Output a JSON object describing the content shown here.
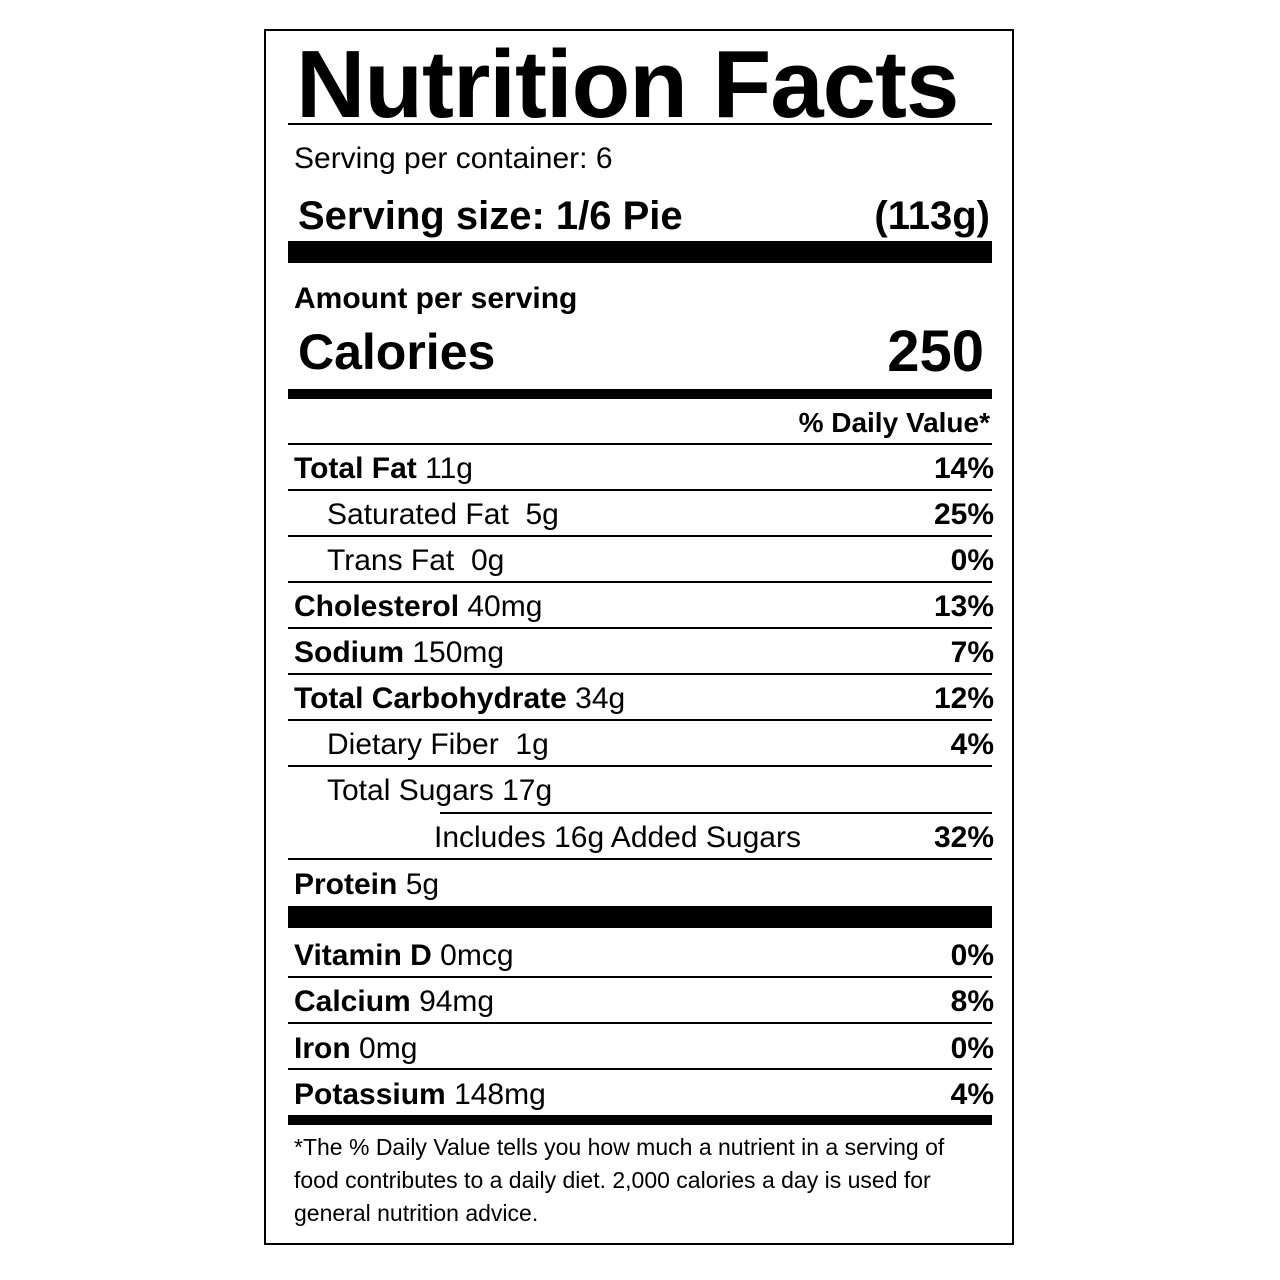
{
  "title": "Nutrition Facts",
  "servings_per_container": "Serving per container: 6",
  "serving_size_label": "Serving size: 1/6 Pie",
  "serving_size_weight": "(113g)",
  "amount_per_serving": "Amount per serving",
  "calories_label": "Calories",
  "calories_value": "250",
  "daily_value_header": "% Daily Value*",
  "nutrients": [
    {
      "name": "Total Fat",
      "amount": "11g",
      "dv": "14%"
    },
    {
      "name": "Saturated Fat",
      "amount": "5g",
      "dv": "25%"
    },
    {
      "name": "Trans Fat",
      "amount": "0g",
      "dv": "0%"
    },
    {
      "name": "Cholesterol",
      "amount": "40mg",
      "dv": "13%"
    },
    {
      "name": "Sodium",
      "amount": "150mg",
      "dv": "7%"
    },
    {
      "name": "Total Carbohydrate",
      "amount": "34g",
      "dv": "12%"
    },
    {
      "name": "Dietary Fiber",
      "amount": "1g",
      "dv": "4%"
    },
    {
      "name": "Total Sugars",
      "amount": "17g",
      "dv": ""
    },
    {
      "name": "Includes 16g Added Sugars",
      "amount": "",
      "dv": "32%"
    },
    {
      "name": "Protein",
      "amount": "5g",
      "dv": ""
    }
  ],
  "vitamins": [
    {
      "name": "Vitamin D",
      "amount": "0mcg",
      "dv": "0%"
    },
    {
      "name": "Calcium",
      "amount": "94mg",
      "dv": "8%"
    },
    {
      "name": "Iron",
      "amount": "0mg",
      "dv": "0%"
    },
    {
      "name": "Potassium",
      "amount": "148mg",
      "dv": "4%"
    }
  ],
  "footnote": "*The % Daily Value tells you how much a nutrient in a serving of food contributes to a daily diet. 2,000 calories a day is used for general nutrition advice."
}
